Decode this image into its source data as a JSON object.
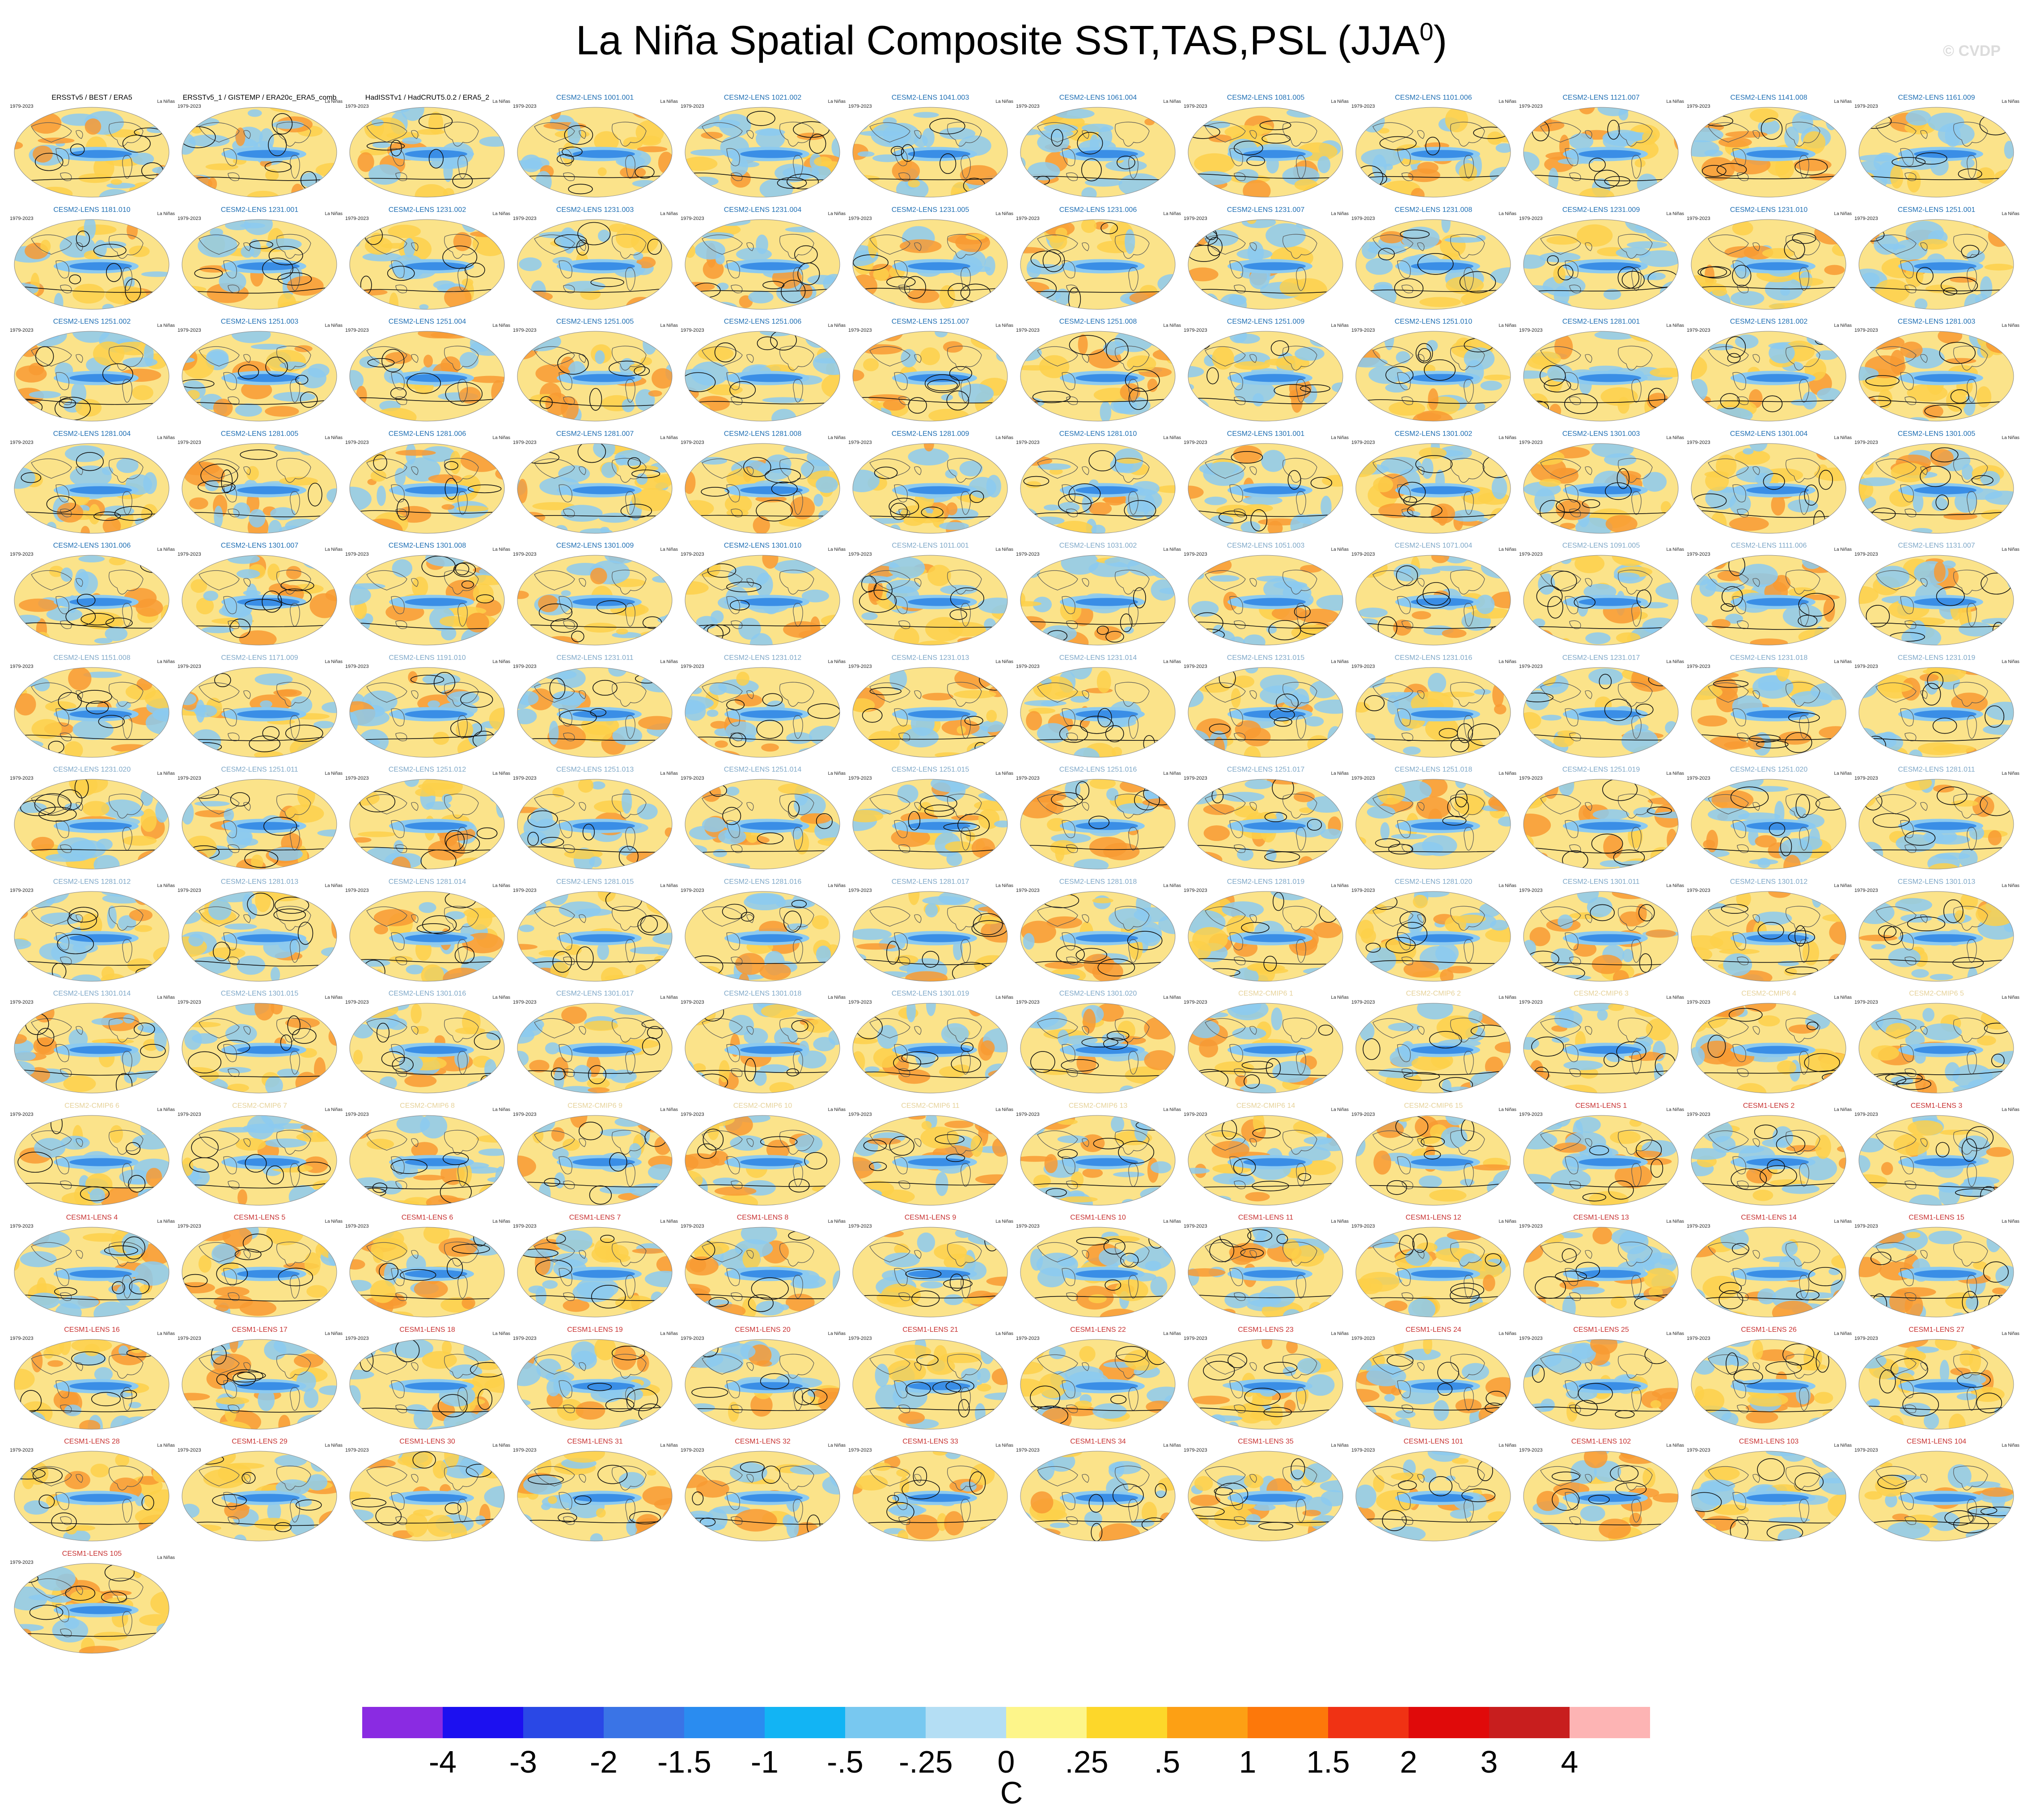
{
  "title": "La Niña Spatial Composite SST,TAS,PSL (JJA",
  "title_sup": "0",
  "title_close": ")",
  "watermark": "© CVDP",
  "period": "1979-2023",
  "stats_line1": "La Niñas",
  "panels": [
    {
      "name": "ERSSTv5 / BEST / ERA5",
      "color": "#000000"
    },
    {
      "name": "ERSSTv5_1 / GISTEMP / ERA20c_ERA5_comb",
      "color": "#000000"
    },
    {
      "name": "HadISSTv1 / HadCRUT5.0.2 / ERA5_2",
      "color": "#000000"
    },
    {
      "name": "CESM2-LENS 1001.001",
      "color": "#1f6fb4"
    },
    {
      "name": "CESM2-LENS 1021.002",
      "color": "#1f6fb4"
    },
    {
      "name": "CESM2-LENS 1041.003",
      "color": "#1f6fb4"
    },
    {
      "name": "CESM2-LENS 1061.004",
      "color": "#1f6fb4"
    },
    {
      "name": "CESM2-LENS 1081.005",
      "color": "#1f6fb4"
    },
    {
      "name": "CESM2-LENS 1101.006",
      "color": "#1f6fb4"
    },
    {
      "name": "CESM2-LENS 1121.007",
      "color": "#1f6fb4"
    },
    {
      "name": "CESM2-LENS 1141.008",
      "color": "#1f6fb4"
    },
    {
      "name": "CESM2-LENS 1161.009",
      "color": "#1f6fb4"
    },
    {
      "name": "CESM2-LENS 1181.010",
      "color": "#1f6fb4"
    },
    {
      "name": "CESM2-LENS 1231.001",
      "color": "#1f6fb4"
    },
    {
      "name": "CESM2-LENS 1231.002",
      "color": "#1f6fb4"
    },
    {
      "name": "CESM2-LENS 1231.003",
      "color": "#1f6fb4"
    },
    {
      "name": "CESM2-LENS 1231.004",
      "color": "#1f6fb4"
    },
    {
      "name": "CESM2-LENS 1231.005",
      "color": "#1f6fb4"
    },
    {
      "name": "CESM2-LENS 1231.006",
      "color": "#1f6fb4"
    },
    {
      "name": "CESM2-LENS 1231.007",
      "color": "#1f6fb4"
    },
    {
      "name": "CESM2-LENS 1231.008",
      "color": "#1f6fb4"
    },
    {
      "name": "CESM2-LENS 1231.009",
      "color": "#1f6fb4"
    },
    {
      "name": "CESM2-LENS 1231.010",
      "color": "#1f6fb4"
    },
    {
      "name": "CESM2-LENS 1251.001",
      "color": "#1f6fb4"
    },
    {
      "name": "CESM2-LENS 1251.002",
      "color": "#1f6fb4"
    },
    {
      "name": "CESM2-LENS 1251.003",
      "color": "#1f6fb4"
    },
    {
      "name": "CESM2-LENS 1251.004",
      "color": "#1f6fb4"
    },
    {
      "name": "CESM2-LENS 1251.005",
      "color": "#1f6fb4"
    },
    {
      "name": "CESM2-LENS 1251.006",
      "color": "#1f6fb4"
    },
    {
      "name": "CESM2-LENS 1251.007",
      "color": "#1f6fb4"
    },
    {
      "name": "CESM2-LENS 1251.008",
      "color": "#1f6fb4"
    },
    {
      "name": "CESM2-LENS 1251.009",
      "color": "#1f6fb4"
    },
    {
      "name": "CESM2-LENS 1251.010",
      "color": "#1f6fb4"
    },
    {
      "name": "CESM2-LENS 1281.001",
      "color": "#1f6fb4"
    },
    {
      "name": "CESM2-LENS 1281.002",
      "color": "#1f6fb4"
    },
    {
      "name": "CESM2-LENS 1281.003",
      "color": "#1f6fb4"
    },
    {
      "name": "CESM2-LENS 1281.004",
      "color": "#1f6fb4"
    },
    {
      "name": "CESM2-LENS 1281.005",
      "color": "#1f6fb4"
    },
    {
      "name": "CESM2-LENS 1281.006",
      "color": "#1f6fb4"
    },
    {
      "name": "CESM2-LENS 1281.007",
      "color": "#1f6fb4"
    },
    {
      "name": "CESM2-LENS 1281.008",
      "color": "#1f6fb4"
    },
    {
      "name": "CESM2-LENS 1281.009",
      "color": "#1f6fb4"
    },
    {
      "name": "CESM2-LENS 1281.010",
      "color": "#1f6fb4"
    },
    {
      "name": "CESM2-LENS 1301.001",
      "color": "#1f6fb4"
    },
    {
      "name": "CESM2-LENS 1301.002",
      "color": "#1f6fb4"
    },
    {
      "name": "CESM2-LENS 1301.003",
      "color": "#1f6fb4"
    },
    {
      "name": "CESM2-LENS 1301.004",
      "color": "#1f6fb4"
    },
    {
      "name": "CESM2-LENS 1301.005",
      "color": "#1f6fb4"
    },
    {
      "name": "CESM2-LENS 1301.006",
      "color": "#1f6fb4"
    },
    {
      "name": "CESM2-LENS 1301.007",
      "color": "#1f6fb4"
    },
    {
      "name": "CESM2-LENS 1301.008",
      "color": "#1f6fb4"
    },
    {
      "name": "CESM2-LENS 1301.009",
      "color": "#1f6fb4"
    },
    {
      "name": "CESM2-LENS 1301.010",
      "color": "#1f6fb4"
    },
    {
      "name": "CESM2-LENS 1011.001",
      "color": "#7fa8c8"
    },
    {
      "name": "CESM2-LENS 1031.002",
      "color": "#7fa8c8"
    },
    {
      "name": "CESM2-LENS 1051.003",
      "color": "#7fa8c8"
    },
    {
      "name": "CESM2-LENS 1071.004",
      "color": "#7fa8c8"
    },
    {
      "name": "CESM2-LENS 1091.005",
      "color": "#7fa8c8"
    },
    {
      "name": "CESM2-LENS 1111.006",
      "color": "#7fa8c8"
    },
    {
      "name": "CESM2-LENS 1131.007",
      "color": "#7fa8c8"
    },
    {
      "name": "CESM2-LENS 1151.008",
      "color": "#7fa8c8"
    },
    {
      "name": "CESM2-LENS 1171.009",
      "color": "#7fa8c8"
    },
    {
      "name": "CESM2-LENS 1191.010",
      "color": "#7fa8c8"
    },
    {
      "name": "CESM2-LENS 1231.011",
      "color": "#7fa8c8"
    },
    {
      "name": "CESM2-LENS 1231.012",
      "color": "#7fa8c8"
    },
    {
      "name": "CESM2-LENS 1231.013",
      "color": "#7fa8c8"
    },
    {
      "name": "CESM2-LENS 1231.014",
      "color": "#7fa8c8"
    },
    {
      "name": "CESM2-LENS 1231.015",
      "color": "#7fa8c8"
    },
    {
      "name": "CESM2-LENS 1231.016",
      "color": "#7fa8c8"
    },
    {
      "name": "CESM2-LENS 1231.017",
      "color": "#7fa8c8"
    },
    {
      "name": "CESM2-LENS 1231.018",
      "color": "#7fa8c8"
    },
    {
      "name": "CESM2-LENS 1231.019",
      "color": "#7fa8c8"
    },
    {
      "name": "CESM2-LENS 1231.020",
      "color": "#7fa8c8"
    },
    {
      "name": "CESM2-LENS 1251.011",
      "color": "#7fa8c8"
    },
    {
      "name": "CESM2-LENS 1251.012",
      "color": "#7fa8c8"
    },
    {
      "name": "CESM2-LENS 1251.013",
      "color": "#7fa8c8"
    },
    {
      "name": "CESM2-LENS 1251.014",
      "color": "#7fa8c8"
    },
    {
      "name": "CESM2-LENS 1251.015",
      "color": "#7fa8c8"
    },
    {
      "name": "CESM2-LENS 1251.016",
      "color": "#7fa8c8"
    },
    {
      "name": "CESM2-LENS 1251.017",
      "color": "#7fa8c8"
    },
    {
      "name": "CESM2-LENS 1251.018",
      "color": "#7fa8c8"
    },
    {
      "name": "CESM2-LENS 1251.019",
      "color": "#7fa8c8"
    },
    {
      "name": "CESM2-LENS 1251.020",
      "color": "#7fa8c8"
    },
    {
      "name": "CESM2-LENS 1281.011",
      "color": "#7fa8c8"
    },
    {
      "name": "CESM2-LENS 1281.012",
      "color": "#7fa8c8"
    },
    {
      "name": "CESM2-LENS 1281.013",
      "color": "#7fa8c8"
    },
    {
      "name": "CESM2-LENS 1281.014",
      "color": "#7fa8c8"
    },
    {
      "name": "CESM2-LENS 1281.015",
      "color": "#7fa8c8"
    },
    {
      "name": "CESM2-LENS 1281.016",
      "color": "#7fa8c8"
    },
    {
      "name": "CESM2-LENS 1281.017",
      "color": "#7fa8c8"
    },
    {
      "name": "CESM2-LENS 1281.018",
      "color": "#7fa8c8"
    },
    {
      "name": "CESM2-LENS 1281.019",
      "color": "#7fa8c8"
    },
    {
      "name": "CESM2-LENS 1281.020",
      "color": "#7fa8c8"
    },
    {
      "name": "CESM2-LENS 1301.011",
      "color": "#7fa8c8"
    },
    {
      "name": "CESM2-LENS 1301.012",
      "color": "#7fa8c8"
    },
    {
      "name": "CESM2-LENS 1301.013",
      "color": "#7fa8c8"
    },
    {
      "name": "CESM2-LENS 1301.014",
      "color": "#7fa8c8"
    },
    {
      "name": "CESM2-LENS 1301.015",
      "color": "#7fa8c8"
    },
    {
      "name": "CESM2-LENS 1301.016",
      "color": "#7fa8c8"
    },
    {
      "name": "CESM2-LENS 1301.017",
      "color": "#7fa8c8"
    },
    {
      "name": "CESM2-LENS 1301.018",
      "color": "#7fa8c8"
    },
    {
      "name": "CESM2-LENS 1301.019",
      "color": "#7fa8c8"
    },
    {
      "name": "CESM2-LENS 1301.020",
      "color": "#7fa8c8"
    },
    {
      "name": "CESM2-CMIP6 1",
      "color": "#e6d29a"
    },
    {
      "name": "CESM2-CMIP6 2",
      "color": "#e6d29a"
    },
    {
      "name": "CESM2-CMIP6 3",
      "color": "#e6d29a"
    },
    {
      "name": "CESM2-CMIP6 4",
      "color": "#e6d29a"
    },
    {
      "name": "CESM2-CMIP6 5",
      "color": "#e6d29a"
    },
    {
      "name": "CESM2-CMIP6 6",
      "color": "#e6d29a"
    },
    {
      "name": "CESM2-CMIP6 7",
      "color": "#e6d29a"
    },
    {
      "name": "CESM2-CMIP6 8",
      "color": "#e6d29a"
    },
    {
      "name": "CESM2-CMIP6 9",
      "color": "#e6d29a"
    },
    {
      "name": "CESM2-CMIP6 10",
      "color": "#e6d29a"
    },
    {
      "name": "CESM2-CMIP6 11",
      "color": "#e6d29a"
    },
    {
      "name": "CESM2-CMIP6 13",
      "color": "#e6d29a"
    },
    {
      "name": "CESM2-CMIP6 14",
      "color": "#e6d29a"
    },
    {
      "name": "CESM2-CMIP6 15",
      "color": "#e6d29a"
    },
    {
      "name": "CESM1-LENS 1",
      "color": "#c83232"
    },
    {
      "name": "CESM1-LENS 2",
      "color": "#c83232"
    },
    {
      "name": "CESM1-LENS 3",
      "color": "#c83232"
    },
    {
      "name": "CESM1-LENS 4",
      "color": "#c83232"
    },
    {
      "name": "CESM1-LENS 5",
      "color": "#c83232"
    },
    {
      "name": "CESM1-LENS 6",
      "color": "#c83232"
    },
    {
      "name": "CESM1-LENS 7",
      "color": "#c83232"
    },
    {
      "name": "CESM1-LENS 8",
      "color": "#c83232"
    },
    {
      "name": "CESM1-LENS 9",
      "color": "#c83232"
    },
    {
      "name": "CESM1-LENS 10",
      "color": "#c83232"
    },
    {
      "name": "CESM1-LENS 11",
      "color": "#c83232"
    },
    {
      "name": "CESM1-LENS 12",
      "color": "#c83232"
    },
    {
      "name": "CESM1-LENS 13",
      "color": "#c83232"
    },
    {
      "name": "CESM1-LENS 14",
      "color": "#c83232"
    },
    {
      "name": "CESM1-LENS 15",
      "color": "#c83232"
    },
    {
      "name": "CESM1-LENS 16",
      "color": "#c83232"
    },
    {
      "name": "CESM1-LENS 17",
      "color": "#c83232"
    },
    {
      "name": "CESM1-LENS 18",
      "color": "#c83232"
    },
    {
      "name": "CESM1-LENS 19",
      "color": "#c83232"
    },
    {
      "name": "CESM1-LENS 20",
      "color": "#c83232"
    },
    {
      "name": "CESM1-LENS 21",
      "color": "#c83232"
    },
    {
      "name": "CESM1-LENS 22",
      "color": "#c83232"
    },
    {
      "name": "CESM1-LENS 23",
      "color": "#c83232"
    },
    {
      "name": "CESM1-LENS 24",
      "color": "#c83232"
    },
    {
      "name": "CESM1-LENS 25",
      "color": "#c83232"
    },
    {
      "name": "CESM1-LENS 26",
      "color": "#c83232"
    },
    {
      "name": "CESM1-LENS 27",
      "color": "#c83232"
    },
    {
      "name": "CESM1-LENS 28",
      "color": "#c83232"
    },
    {
      "name": "CESM1-LENS 29",
      "color": "#c83232"
    },
    {
      "name": "CESM1-LENS 30",
      "color": "#c83232"
    },
    {
      "name": "CESM1-LENS 31",
      "color": "#c83232"
    },
    {
      "name": "CESM1-LENS 32",
      "color": "#c83232"
    },
    {
      "name": "CESM1-LENS 33",
      "color": "#c83232"
    },
    {
      "name": "CESM1-LENS 34",
      "color": "#c83232"
    },
    {
      "name": "CESM1-LENS 35",
      "color": "#c83232"
    },
    {
      "name": "CESM1-LENS 101",
      "color": "#c83232"
    },
    {
      "name": "CESM1-LENS 102",
      "color": "#c83232"
    },
    {
      "name": "CESM1-LENS 103",
      "color": "#c83232"
    },
    {
      "name": "CESM1-LENS 104",
      "color": "#c83232"
    },
    {
      "name": "CESM1-LENS 105",
      "color": "#c83232"
    }
  ],
  "colorbar": {
    "colors": [
      "#8a2be2",
      "#1c10f0",
      "#2a48e6",
      "#3a74e6",
      "#2a8cf0",
      "#12b4f4",
      "#78c8f0",
      "#b4def4",
      "#fdf58a",
      "#fdd72a",
      "#fda014",
      "#fd780a",
      "#f03214",
      "#e00a0a",
      "#c81e1e",
      "#fdb4b4"
    ],
    "tick_labels": [
      "-4",
      "-3",
      "-2",
      "-1.5",
      "-1",
      "-.5",
      "-.25",
      "0",
      ".25",
      ".5",
      "1",
      "1.5",
      "2",
      "3",
      "4"
    ],
    "units": "C"
  },
  "map_colors": {
    "ocean_base": "#fbe38a",
    "cold_tongue": "#3a8ee6",
    "cold_light": "#8ccaf0",
    "warm": "#f89a32",
    "land_outline": "#555555",
    "psl_contour": "#111111"
  }
}
